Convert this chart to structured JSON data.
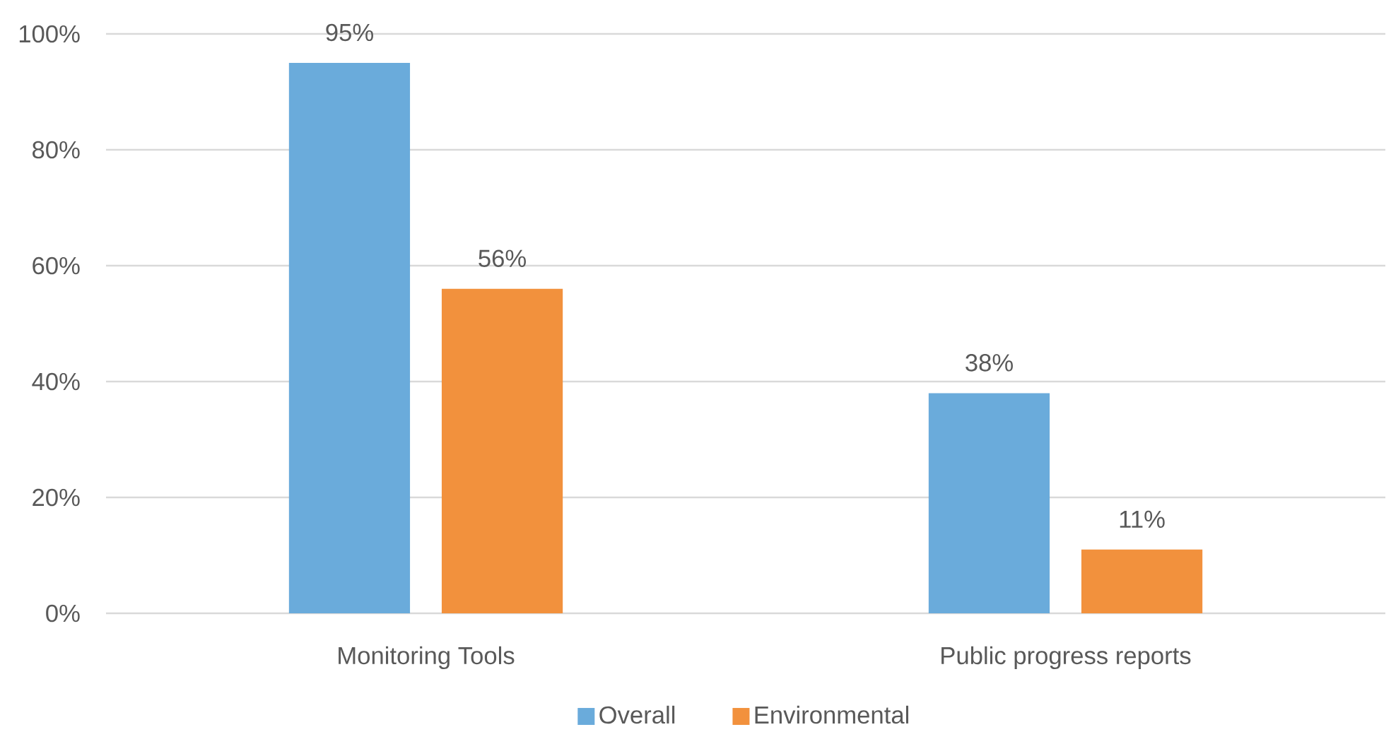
{
  "chart_data": {
    "type": "bar",
    "categories": [
      "Monitoring Tools",
      "Public progress reports"
    ],
    "series": [
      {
        "name": "Overall",
        "color": "#6aabdb",
        "values": [
          95,
          38
        ],
        "value_labels": [
          "95%",
          "38%"
        ]
      },
      {
        "name": "Environmental",
        "color": "#f2913d",
        "values": [
          56,
          11
        ],
        "value_labels": [
          "56%",
          "11%"
        ]
      }
    ],
    "ylim": [
      0,
      100
    ],
    "yticks": [
      {
        "value": 0,
        "label": "0%"
      },
      {
        "value": 20,
        "label": "20%"
      },
      {
        "value": 40,
        "label": "40%"
      },
      {
        "value": 60,
        "label": "60%"
      },
      {
        "value": 80,
        "label": "80%"
      },
      {
        "value": 100,
        "label": "100%"
      }
    ],
    "grid": "y",
    "legend": "bottom"
  }
}
